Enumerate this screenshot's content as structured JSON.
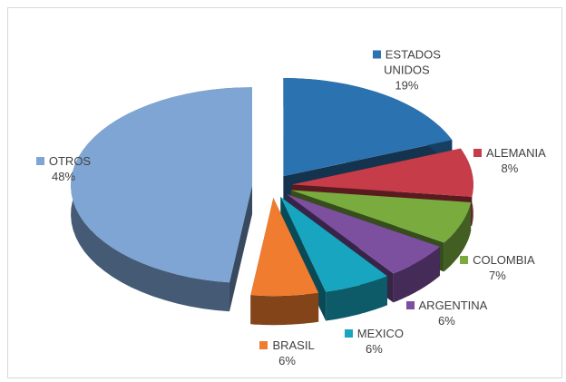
{
  "chart_data": {
    "type": "pie",
    "categories": [
      "ESTADOS UNIDOS",
      "ALEMANIA",
      "COLOMBIA",
      "ARGENTINA",
      "MEXICO",
      "BRASIL",
      "OTROS"
    ],
    "values": [
      19,
      8,
      7,
      6,
      6,
      6,
      48
    ],
    "value_labels": [
      "19%",
      "8%",
      "7%",
      "6%",
      "6%",
      "6%",
      "48%"
    ],
    "colors": [
      "#2a72b0",
      "#c63c48",
      "#79ab3e",
      "#7d4f9f",
      "#17a5bf",
      "#ef7c2f",
      "#7ea5d4"
    ]
  }
}
